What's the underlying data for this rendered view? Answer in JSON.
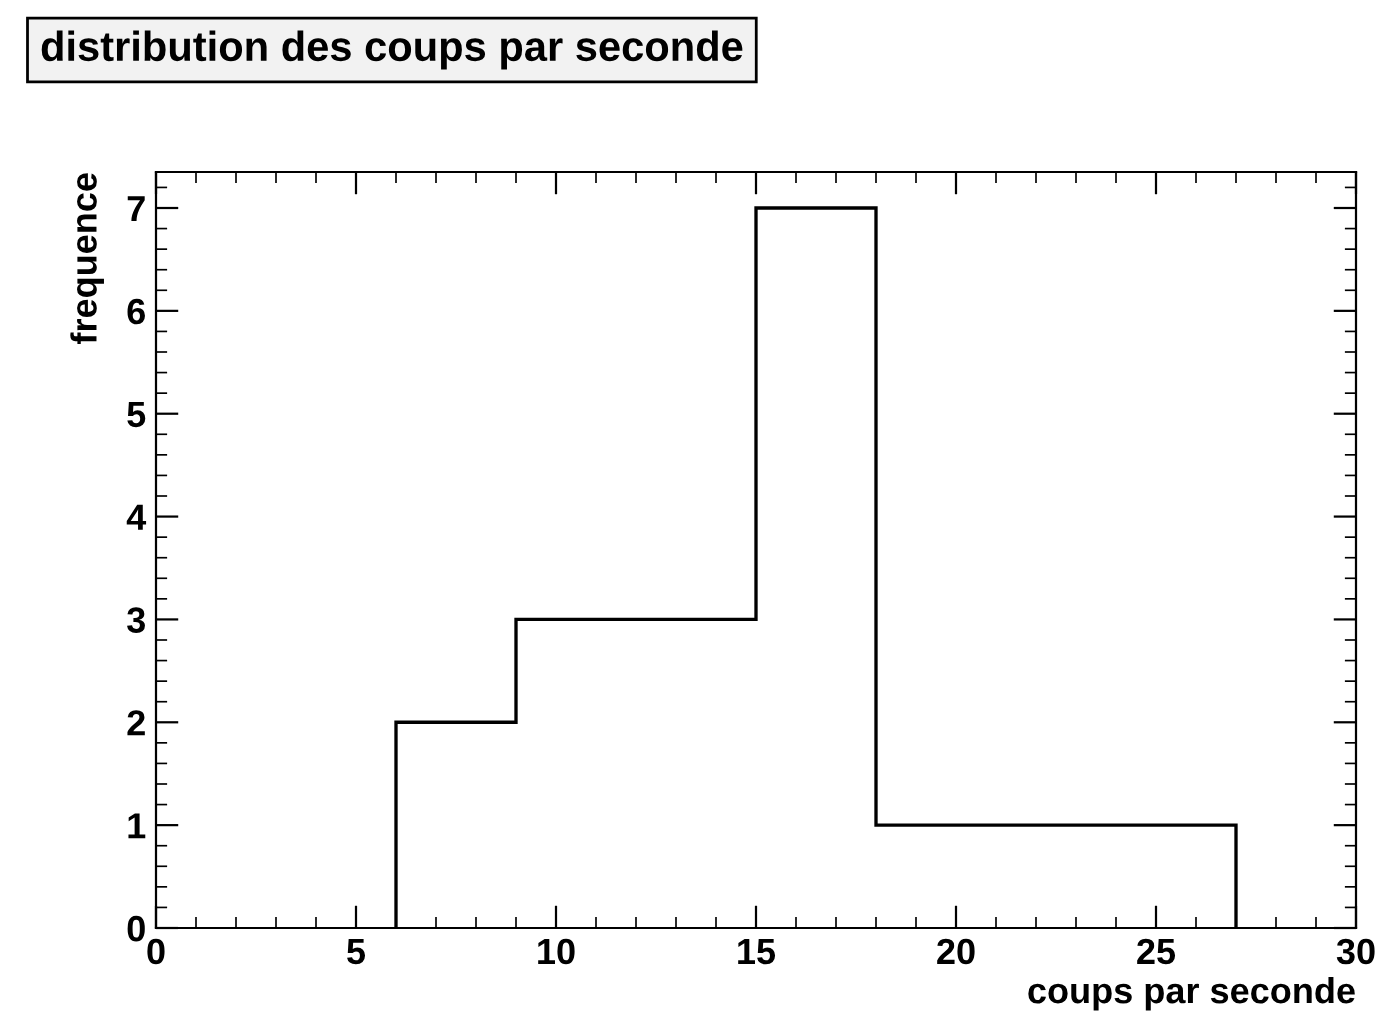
{
  "chart_data": {
    "type": "histogram",
    "title": "distribution des coups par seconde",
    "xlabel": "coups par seconde",
    "ylabel": "frequence",
    "bins": [
      6,
      9,
      12,
      15,
      18,
      21,
      24,
      27
    ],
    "values": [
      2,
      3,
      3,
      7,
      1,
      1,
      1
    ],
    "color": "#000000",
    "xlim": [
      0,
      30
    ],
    "xticks": [
      0,
      5,
      10,
      15,
      20,
      25,
      30
    ],
    "ylim": [
      0,
      7.35
    ],
    "yticks": [
      0,
      1,
      2,
      3,
      4,
      5,
      6,
      7
    ],
    "grid": false,
    "legend": false
  }
}
